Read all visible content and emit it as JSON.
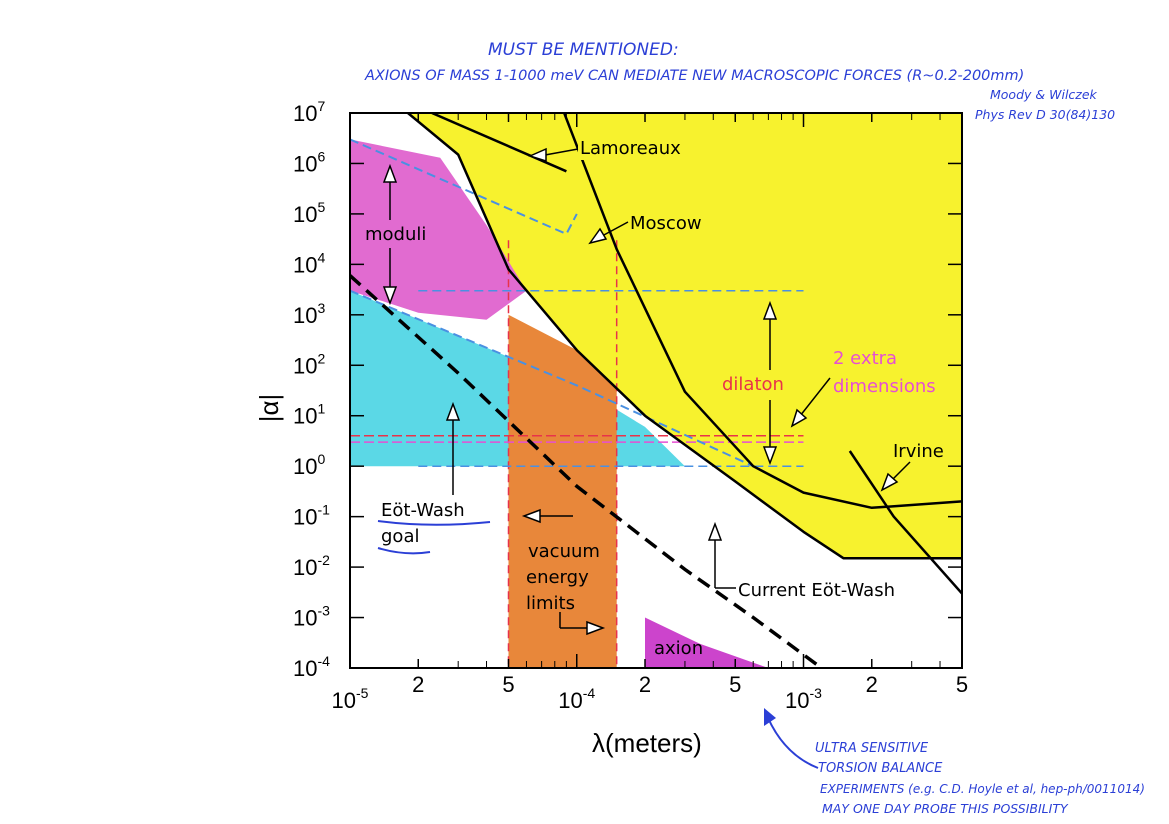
{
  "chart_data": {
    "type": "area",
    "title": "",
    "xlabel": "λ(meters)",
    "ylabel": "|α|",
    "x_scale": "log",
    "y_scale": "log",
    "xlim": [
      1e-05,
      0.005
    ],
    "ylim": [
      0.0001,
      10000000
    ],
    "x_ticks": [
      {
        "value": 1e-05,
        "base": "10",
        "exp": "-5"
      },
      {
        "value": 2e-05,
        "label": "2"
      },
      {
        "value": 5e-05,
        "label": "5"
      },
      {
        "value": 0.0001,
        "base": "10",
        "exp": "-4"
      },
      {
        "value": 0.0002,
        "label": "2"
      },
      {
        "value": 0.0005,
        "label": "5"
      },
      {
        "value": 0.001,
        "base": "10",
        "exp": "-3"
      },
      {
        "value": 0.002,
        "label": "2"
      },
      {
        "value": 0.005,
        "label": "5"
      }
    ],
    "y_ticks": [
      {
        "value": 10000000,
        "base": "10",
        "exp": "7"
      },
      {
        "value": 1000000,
        "base": "10",
        "exp": "6"
      },
      {
        "value": 100000,
        "base": "10",
        "exp": "5"
      },
      {
        "value": 10000,
        "base": "10",
        "exp": "4"
      },
      {
        "value": 1000,
        "base": "10",
        "exp": "3"
      },
      {
        "value": 100,
        "base": "10",
        "exp": "2"
      },
      {
        "value": 10,
        "base": "10",
        "exp": "1"
      },
      {
        "value": 1,
        "base": "10",
        "exp": "0"
      },
      {
        "value": 0.1,
        "base": "10",
        "exp": "-1"
      },
      {
        "value": 0.01,
        "base": "10",
        "exp": "-2"
      },
      {
        "value": 0.001,
        "base": "10",
        "exp": "-3"
      },
      {
        "value": 0.0001,
        "base": "10",
        "exp": "-4"
      }
    ],
    "series": [
      {
        "name": "Current Eöt-Wash",
        "kind": "excluded-region-boundary",
        "points": [
          [
            1.8e-05,
            10000000
          ],
          [
            3e-05,
            1500000
          ],
          [
            5e-05,
            8000
          ],
          [
            0.0001,
            200
          ],
          [
            0.0002,
            10
          ],
          [
            0.0005,
            0.5
          ],
          [
            0.001,
            0.05
          ],
          [
            0.0015,
            0.015
          ],
          [
            0.005,
            0.015
          ]
        ]
      },
      {
        "name": "Lamoreaux",
        "points": [
          [
            2.3e-05,
            10000000
          ],
          [
            9e-05,
            700000
          ]
        ]
      },
      {
        "name": "Moscow",
        "points": [
          [
            8.8e-05,
            10000000
          ],
          [
            0.00015,
            20000
          ],
          [
            0.0003,
            30
          ],
          [
            0.0006,
            1
          ],
          [
            0.001,
            0.3
          ],
          [
            0.002,
            0.15
          ],
          [
            0.005,
            0.2
          ]
        ]
      },
      {
        "name": "Irvine",
        "points": [
          [
            0.0016,
            2
          ],
          [
            0.0025,
            0.1
          ],
          [
            0.005,
            0.003
          ]
        ]
      },
      {
        "name": "Eöt-Wash goal",
        "style": "dashed",
        "points": [
          [
            1e-05,
            6000
          ],
          [
            3e-05,
            70
          ],
          [
            0.0001,
            0.4
          ],
          [
            0.0003,
            0.009
          ],
          [
            0.0006,
            0.001
          ],
          [
            0.0012,
            0.0001
          ]
        ]
      },
      {
        "name": "moduli",
        "points": [
          [
            1e-05,
            3000000
          ],
          [
            9e-05,
            40000
          ],
          [
            0.0001,
            100000
          ]
        ]
      },
      {
        "name": "moduli",
        "points": [
          [
            1e-05,
            3000
          ],
          [
            0.0001,
            40
          ],
          [
            0.0006,
            1
          ]
        ]
      },
      {
        "name": "dilaton",
        "points": [
          [
            2e-05,
            3000
          ],
          [
            0.001,
            3000
          ]
        ]
      },
      {
        "name": "dilaton",
        "points": [
          [
            2e-05,
            1
          ],
          [
            0.001,
            1
          ]
        ]
      },
      {
        "name": "2 extra dimensions",
        "points": [
          [
            1e-05,
            4
          ],
          [
            0.001,
            4
          ]
        ]
      },
      {
        "name": "2 extra dimensions",
        "points": [
          [
            1e-05,
            3
          ],
          [
            0.001,
            3
          ]
        ]
      },
      {
        "name": "vacuum energy limits",
        "kind": "band",
        "x": [
          5e-05,
          0.00015
        ]
      },
      {
        "name": "axion",
        "kind": "region",
        "points": [
          [
            0.0002,
            0.001
          ],
          [
            0.0002,
            0.0001
          ],
          [
            0.0007,
            0.0001
          ],
          [
            0.00035,
            0.0003
          ]
        ]
      }
    ],
    "labels": {
      "lamoreaux": "Lamoreaux",
      "moscow": "Moscow",
      "moduli": "moduli",
      "dilaton": "dilaton",
      "extra_dims_line1": "2 extra",
      "extra_dims_line2": "dimensions",
      "irvine": "Irvine",
      "eot_goal_line1": "Eöt-Wash",
      "eot_goal_line2": "goal",
      "vacuum_line1": "vacuum",
      "vacuum_line2": "energy",
      "vacuum_line3": "limits",
      "current_eot": "Current Eöt-Wash",
      "axion": "axion"
    },
    "colors": {
      "excluded": "#f7f22e",
      "moduli": "#e16bd0",
      "dilaton_cyan": "#5bd8e6",
      "vacuum": "#e8873a",
      "axion": "#cc44cc",
      "dash_blue": "#4a90e2",
      "dash_red": "#e8334a",
      "dash_magenta": "#e64fd3",
      "ink": "#2b3fd6"
    }
  },
  "annotations": {
    "top_line1": "MUST BE MENTIONED:",
    "top_line2": "AXIONS OF MASS 1-1000 meV CAN MEDIATE NEW MACROSCOPIC FORCES (R~0.2-200mm)",
    "ref_line1": "Moody & Wilczek",
    "ref_line2": "Phys Rev D 30(84)130",
    "bottom_line1": "ULTRA SENSITIVE",
    "bottom_line2": "TORSION BALANCE",
    "bottom_line3": "EXPERIMENTS (e.g. C.D. Hoyle et al, hep-ph/0011014)",
    "bottom_line4": "MAY ONE DAY PROBE THIS POSSIBILITY"
  }
}
